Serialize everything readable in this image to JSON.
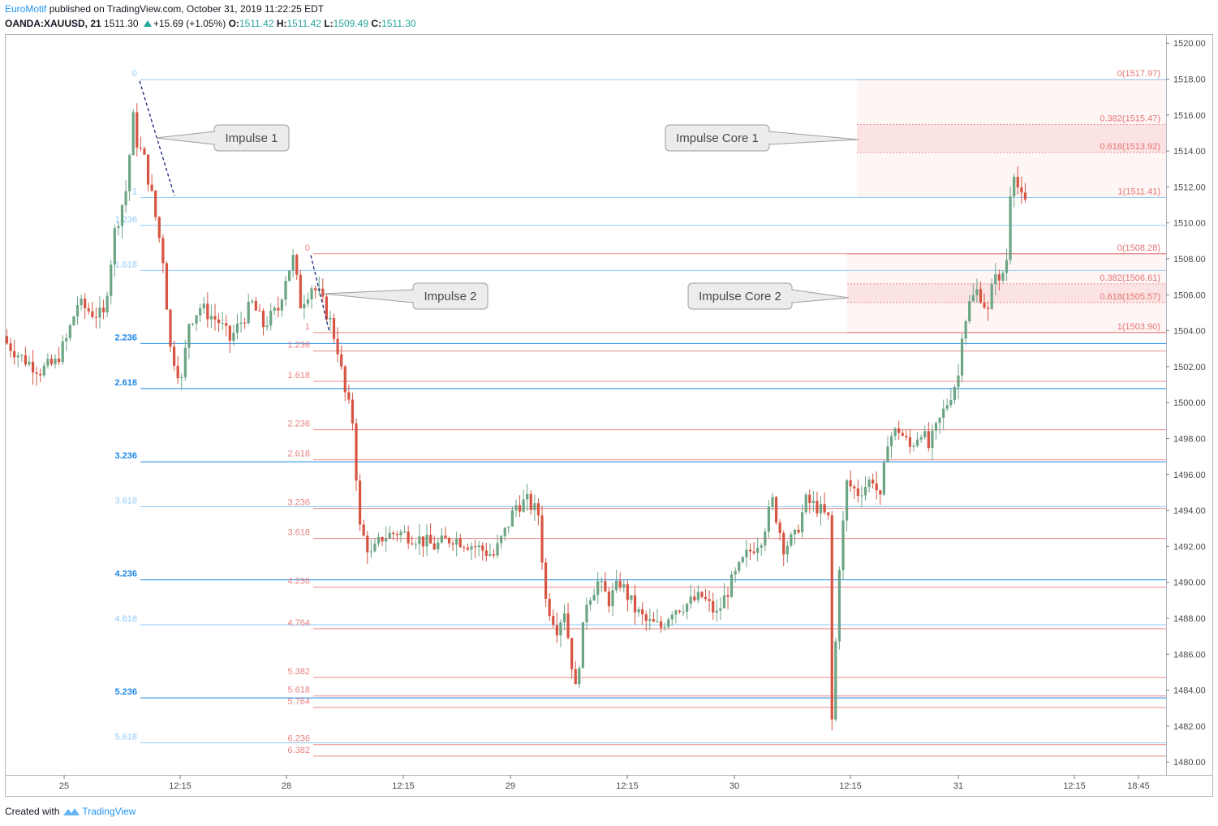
{
  "header": {
    "author": "EuroMotif",
    "published_text": "published on TradingView.com, October 31, 2019 11:22:25 EDT",
    "symbol": "OANDA:XAUUSD, 21",
    "last": "1511.30",
    "change": "+15.69 (+1.05%)",
    "open_label": "O:",
    "open": "1511.42",
    "high_label": "H:",
    "high": "1511.42",
    "low_label": "L:",
    "low": "1509.49",
    "close_label": "C:",
    "close": "1511.30"
  },
  "footer": {
    "created_with": "Created with",
    "brand": "TradingView"
  },
  "colors": {
    "up": "#6ba583",
    "down": "#d75442",
    "fib1": "#90caf9",
    "fib1_strong": "#1e88e5",
    "fib2": "#e57373",
    "core_fill": "#fdecec"
  },
  "chart_data": {
    "type": "candlestick",
    "symbol": "OANDA:XAUUSD",
    "timeframe": "21",
    "y_axis": {
      "range": [
        1479.5,
        1520.5
      ],
      "ticks": [
        "1520.00",
        "1518.00",
        "1516.00",
        "1514.00",
        "1512.00",
        "1510.00",
        "1508.00",
        "1506.00",
        "1504.00",
        "1502.00",
        "1500.00",
        "1498.00",
        "1496.00",
        "1494.00",
        "1492.00",
        "1490.00",
        "1488.00",
        "1486.00",
        "1484.00",
        "1482.00",
        "1480.00"
      ]
    },
    "x_axis": {
      "ticks": [
        "25",
        "12:15",
        "28",
        "12:15",
        "29",
        "12:15",
        "30",
        "12:15",
        "31",
        "12:15",
        "18:45"
      ]
    },
    "price_path": [
      {
        "t": 0,
        "p": 1503.5
      },
      {
        "t": 5,
        "p": 1502.5
      },
      {
        "t": 10,
        "p": 1501.8
      },
      {
        "t": 14,
        "p": 1502.2
      },
      {
        "t": 17,
        "p": 1503.5
      },
      {
        "t": 20,
        "p": 1505.5
      },
      {
        "t": 24,
        "p": 1505.0
      },
      {
        "t": 27,
        "p": 1504.8
      },
      {
        "t": 30,
        "p": 1509.5
      },
      {
        "t": 33,
        "p": 1511.8
      },
      {
        "t": 35,
        "p": 1515.8
      },
      {
        "t": 36,
        "p": 1514.5
      },
      {
        "t": 38,
        "p": 1513.5
      },
      {
        "t": 40,
        "p": 1511.5
      },
      {
        "t": 43,
        "p": 1508.0
      },
      {
        "t": 45,
        "p": 1503.0
      },
      {
        "t": 47,
        "p": 1501.8
      },
      {
        "t": 48,
        "p": 1501.2
      },
      {
        "t": 50,
        "p": 1504.5
      },
      {
        "t": 53,
        "p": 1505.3
      },
      {
        "t": 58,
        "p": 1504.5
      },
      {
        "t": 61,
        "p": 1503.5
      },
      {
        "t": 64,
        "p": 1504.5
      },
      {
        "t": 67,
        "p": 1505.5
      },
      {
        "t": 70,
        "p": 1504.3
      },
      {
        "t": 74,
        "p": 1505.2
      },
      {
        "t": 76,
        "p": 1507.0
      },
      {
        "t": 78,
        "p": 1508.0
      },
      {
        "t": 80,
        "p": 1505.5
      },
      {
        "t": 83,
        "p": 1506.5
      },
      {
        "t": 85,
        "p": 1506.0
      },
      {
        "t": 88,
        "p": 1504.5
      },
      {
        "t": 90,
        "p": 1503.0
      },
      {
        "t": 92,
        "p": 1500.5
      },
      {
        "t": 94,
        "p": 1499.0
      },
      {
        "t": 96,
        "p": 1493.0
      },
      {
        "t": 99,
        "p": 1491.5
      },
      {
        "t": 102,
        "p": 1492.5
      },
      {
        "t": 106,
        "p": 1492.8
      },
      {
        "t": 111,
        "p": 1492.5
      },
      {
        "t": 116,
        "p": 1492.0
      },
      {
        "t": 121,
        "p": 1492.5
      },
      {
        "t": 127,
        "p": 1492.0
      },
      {
        "t": 132,
        "p": 1491.5
      },
      {
        "t": 135,
        "p": 1492.8
      },
      {
        "t": 138,
        "p": 1494.3
      },
      {
        "t": 141,
        "p": 1494.5
      },
      {
        "t": 144,
        "p": 1493.8
      },
      {
        "t": 146,
        "p": 1489.0
      },
      {
        "t": 149,
        "p": 1487.5
      },
      {
        "t": 151,
        "p": 1488.5
      },
      {
        "t": 154,
        "p": 1484.0
      },
      {
        "t": 157,
        "p": 1489.0
      },
      {
        "t": 160,
        "p": 1490.0
      },
      {
        "t": 163,
        "p": 1489.0
      },
      {
        "t": 166,
        "p": 1490.0
      },
      {
        "t": 170,
        "p": 1488.5
      },
      {
        "t": 173,
        "p": 1487.8
      },
      {
        "t": 177,
        "p": 1487.5
      },
      {
        "t": 180,
        "p": 1488.5
      },
      {
        "t": 184,
        "p": 1488.8
      },
      {
        "t": 188,
        "p": 1489.2
      },
      {
        "t": 192,
        "p": 1488.2
      },
      {
        "t": 196,
        "p": 1490.0
      },
      {
        "t": 200,
        "p": 1491.5
      },
      {
        "t": 204,
        "p": 1492.5
      },
      {
        "t": 207,
        "p": 1494.5
      },
      {
        "t": 210,
        "p": 1492.0
      },
      {
        "t": 213,
        "p": 1492.5
      },
      {
        "t": 216,
        "p": 1494.5
      },
      {
        "t": 219,
        "p": 1494.2
      },
      {
        "t": 222,
        "p": 1493.5
      },
      {
        "t": 223,
        "p": 1482.3
      },
      {
        "t": 225,
        "p": 1491.0
      },
      {
        "t": 227,
        "p": 1495.5
      },
      {
        "t": 230,
        "p": 1495.0
      },
      {
        "t": 234,
        "p": 1495.8
      },
      {
        "t": 236,
        "p": 1494.5
      },
      {
        "t": 238,
        "p": 1498.0
      },
      {
        "t": 241,
        "p": 1498.5
      },
      {
        "t": 244,
        "p": 1497.5
      },
      {
        "t": 247,
        "p": 1498.5
      },
      {
        "t": 249,
        "p": 1497.5
      },
      {
        "t": 252,
        "p": 1499.0
      },
      {
        "t": 255,
        "p": 1500.5
      },
      {
        "t": 257,
        "p": 1501.5
      },
      {
        "t": 258,
        "p": 1504.0
      },
      {
        "t": 260,
        "p": 1505.5
      },
      {
        "t": 262,
        "p": 1506.2
      },
      {
        "t": 263,
        "p": 1506.0
      },
      {
        "t": 265,
        "p": 1505.0
      },
      {
        "t": 267,
        "p": 1507.5
      },
      {
        "t": 268,
        "p": 1506.5
      },
      {
        "t": 270,
        "p": 1508.0
      },
      {
        "t": 271,
        "p": 1511.8
      },
      {
        "t": 272,
        "p": 1513.0
      },
      {
        "t": 273,
        "p": 1512.0
      },
      {
        "t": 274,
        "p": 1511.3
      }
    ],
    "impulse1_fib": {
      "labels": [
        "0",
        "1",
        "1.236",
        "1.618",
        "2.236",
        "2.618",
        "3.236",
        "3.618",
        "4.236",
        "4.618",
        "5.236",
        "5.618"
      ],
      "values": [
        1517.97,
        1511.41,
        1509.86,
        1507.35,
        1503.29,
        1500.78,
        1496.71,
        1494.21,
        1490.14,
        1487.64,
        1483.57,
        1481.07
      ]
    },
    "impulse2_fib": {
      "labels": [
        "0",
        "1",
        "1.236",
        "1.618",
        "2.236",
        "2.618",
        "3.236",
        "3.618",
        "4.236",
        "4.764",
        "5.382",
        "5.618",
        "5.764",
        "6.236",
        "6.382"
      ],
      "values": [
        1508.28,
        1503.9,
        1502.87,
        1501.19,
        1498.49,
        1496.82,
        1494.11,
        1492.44,
        1489.73,
        1487.42,
        1484.71,
        1483.68,
        1483.04,
        1480.97,
        1480.33
      ]
    },
    "impulse_core_1": {
      "labels": [
        "0(1517.97)",
        "0.382(1515.47)",
        "0.618(1513.92)",
        "1(1511.41)"
      ],
      "values": [
        1517.97,
        1515.47,
        1513.92,
        1511.41
      ]
    },
    "impulse_core_2": {
      "labels": [
        "0(1508.28)",
        "0.382(1506.61)",
        "0.618(1505.57)",
        "1(1503.90)"
      ],
      "values": [
        1508.28,
        1506.61,
        1505.57,
        1503.9
      ]
    },
    "annotations": [
      "Impulse 1",
      "Impulse 2",
      "Impulse Core 1",
      "Impulse Core 2"
    ]
  }
}
